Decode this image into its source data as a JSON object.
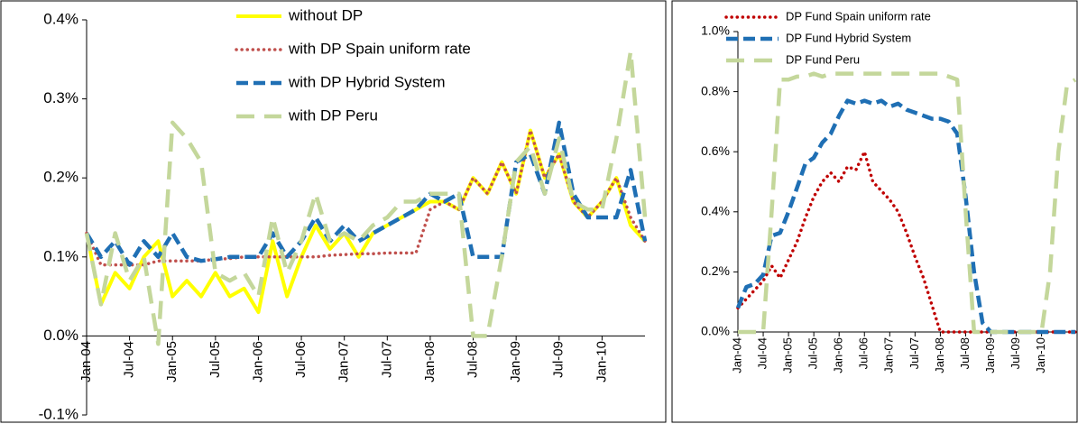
{
  "chart_data": [
    {
      "type": "line",
      "categories": [
        "Jan-04",
        null,
        null,
        "Jul-04",
        null,
        null,
        "Jan-05",
        null,
        null,
        "Jul-05",
        null,
        null,
        "Jan-06",
        null,
        null,
        "Jul-06",
        null,
        null,
        "Jan-07",
        null,
        null,
        "Jul-07",
        null,
        null,
        "Jan-08",
        null,
        null,
        "Jul-08",
        null,
        null,
        "Jan-09",
        null,
        null,
        "Jul-09",
        null,
        null,
        "Jan-10",
        null,
        null,
        null
      ],
      "ylim": [
        -0.1,
        0.4
      ],
      "yticks": [
        {
          "value": -0.1,
          "label": "-0.1%"
        },
        {
          "value": 0,
          "label": "0.0%"
        },
        {
          "value": 0.1,
          "label": "0.1%"
        },
        {
          "value": 0.2,
          "label": "0.2%"
        },
        {
          "value": 0.3,
          "label": "0.3%"
        },
        {
          "value": 0.4,
          "label": "0.4%"
        }
      ],
      "series": [
        {
          "name": "without DP",
          "color": "#ffff00",
          "style": "solid",
          "values": [
            0.13,
            0.04,
            0.08,
            0.06,
            0.1,
            0.12,
            0.05,
            0.07,
            0.05,
            0.08,
            0.05,
            0.06,
            0.03,
            0.12,
            0.05,
            0.1,
            0.14,
            0.11,
            0.13,
            0.1,
            0.13,
            0.14,
            0.15,
            0.16,
            0.17,
            0.17,
            0.16,
            0.2,
            0.18,
            0.22,
            0.18,
            0.26,
            0.2,
            0.23,
            0.17,
            0.15,
            0.17,
            0.2,
            0.14,
            0.12
          ]
        },
        {
          "name": "with DP Spain uniform rate",
          "color": "#c0504d",
          "style": "dotted",
          "values": [
            0.13,
            0.09,
            0.09,
            0.09,
            0.09,
            0.095,
            0.095,
            0.095,
            0.095,
            0.097,
            0.098,
            0.1,
            0.1,
            0.1,
            0.1,
            0.1,
            0.1,
            0.102,
            0.103,
            0.104,
            0.104,
            0.105,
            0.105,
            0.105,
            0.16,
            0.17,
            0.16,
            0.2,
            0.18,
            0.22,
            0.18,
            0.26,
            0.2,
            0.23,
            0.17,
            0.15,
            0.17,
            0.2,
            0.15,
            0.12
          ]
        },
        {
          "name": "with DP Hybrid System",
          "color": "#1f6fb4",
          "style": "dashed",
          "values": [
            0.13,
            0.1,
            0.12,
            0.09,
            0.12,
            0.1,
            0.13,
            0.1,
            0.095,
            0.097,
            0.1,
            0.1,
            0.1,
            0.13,
            0.1,
            0.12,
            0.15,
            0.12,
            0.14,
            0.12,
            0.13,
            0.14,
            0.15,
            0.16,
            0.18,
            0.17,
            0.18,
            0.1,
            0.1,
            0.1,
            0.22,
            0.23,
            0.18,
            0.27,
            0.18,
            0.15,
            0.15,
            0.15,
            0.21,
            0.12
          ]
        },
        {
          "name": "with DP Peru",
          "color": "#c4d79b",
          "style": "longdash",
          "values": [
            0.13,
            0.04,
            0.13,
            0.07,
            0.1,
            -0.01,
            0.27,
            0.25,
            0.22,
            0.08,
            0.07,
            0.08,
            0.05,
            0.15,
            0.08,
            0.12,
            0.18,
            0.12,
            0.13,
            0.12,
            0.14,
            0.15,
            0.17,
            0.17,
            0.18,
            0.18,
            0.18,
            0.0,
            0.0,
            0.1,
            0.22,
            0.24,
            0.18,
            0.25,
            0.17,
            0.16,
            0.16,
            0.25,
            0.36,
            0.15
          ]
        }
      ]
    },
    {
      "type": "line",
      "categories": [
        "Jan-04",
        null,
        null,
        "Jul-04",
        null,
        null,
        "Jan-05",
        null,
        null,
        "Jul-05",
        null,
        null,
        "Jan-06",
        null,
        null,
        "Jul-06",
        null,
        null,
        "Jan-07",
        null,
        null,
        "Jul-07",
        null,
        null,
        "Jan-08",
        null,
        null,
        "Jul-08",
        null,
        null,
        "Jan-09",
        null,
        null,
        "Jul-09",
        null,
        null,
        "Jan-10",
        null,
        null,
        null,
        null
      ],
      "ylim": [
        0,
        1.0
      ],
      "yticks": [
        {
          "value": 0,
          "label": "0.0%"
        },
        {
          "value": 0.2,
          "label": "0.2%"
        },
        {
          "value": 0.4,
          "label": "0.4%"
        },
        {
          "value": 0.6,
          "label": "0.6%"
        },
        {
          "value": 0.8,
          "label": "0.8%"
        },
        {
          "value": 1.0,
          "label": "1.0%"
        }
      ],
      "series": [
        {
          "name": "DP Fund Spain uniform rate",
          "color": "#c00000",
          "style": "dotted",
          "values": [
            0.08,
            0.11,
            0.14,
            0.17,
            0.22,
            0.18,
            0.24,
            0.3,
            0.38,
            0.45,
            0.5,
            0.53,
            0.5,
            0.55,
            0.54,
            0.6,
            0.5,
            0.47,
            0.44,
            0.4,
            0.33,
            0.25,
            0.18,
            0.09,
            0,
            0,
            0,
            0,
            0,
            0,
            0,
            0,
            0,
            0,
            0,
            0,
            0,
            0,
            0,
            0,
            0
          ]
        },
        {
          "name": "DP Fund Hybrid System",
          "color": "#1f6fb4",
          "style": "dashed",
          "values": [
            0.08,
            0.15,
            0.16,
            0.19,
            0.32,
            0.33,
            0.4,
            0.48,
            0.56,
            0.58,
            0.63,
            0.66,
            0.72,
            0.77,
            0.76,
            0.77,
            0.76,
            0.77,
            0.75,
            0.76,
            0.74,
            0.73,
            0.72,
            0.71,
            0.71,
            0.7,
            0.66,
            0.45,
            0.2,
            0.03,
            0,
            0,
            0,
            0,
            0,
            0,
            0,
            0,
            0,
            0,
            0
          ]
        },
        {
          "name": "DP Fund Peru",
          "color": "#c4d79b",
          "style": "longdash",
          "values": [
            0,
            0,
            0,
            0,
            0.4,
            0.84,
            0.84,
            0.85,
            0.85,
            0.86,
            0.85,
            0.86,
            0.86,
            0.86,
            0.86,
            0.86,
            0.86,
            0.86,
            0.86,
            0.86,
            0.86,
            0.86,
            0.86,
            0.86,
            0.86,
            0.85,
            0.84,
            0.4,
            0,
            0,
            0,
            0,
            0,
            0,
            0,
            0,
            0,
            0.2,
            0.6,
            0.82,
            0.84
          ]
        }
      ]
    }
  ]
}
